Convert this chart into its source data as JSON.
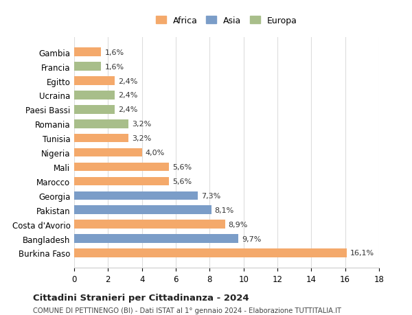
{
  "countries": [
    "Burkina Faso",
    "Bangladesh",
    "Costa d'Avorio",
    "Pakistan",
    "Georgia",
    "Marocco",
    "Mali",
    "Nigeria",
    "Tunisia",
    "Romania",
    "Paesi Bassi",
    "Ucraina",
    "Egitto",
    "Francia",
    "Gambia"
  ],
  "values": [
    16.1,
    9.7,
    8.9,
    8.1,
    7.3,
    5.6,
    5.6,
    4.0,
    3.2,
    3.2,
    2.4,
    2.4,
    2.4,
    1.6,
    1.6
  ],
  "labels": [
    "16,1%",
    "9,7%",
    "8,9%",
    "8,1%",
    "7,3%",
    "5,6%",
    "5,6%",
    "4,0%",
    "3,2%",
    "3,2%",
    "2,4%",
    "2,4%",
    "2,4%",
    "1,6%",
    "1,6%"
  ],
  "continents": [
    "Africa",
    "Asia",
    "Africa",
    "Asia",
    "Asia",
    "Africa",
    "Africa",
    "Africa",
    "Africa",
    "Europa",
    "Europa",
    "Europa",
    "Africa",
    "Europa",
    "Africa"
  ],
  "colors": {
    "Africa": "#F4A96B",
    "Asia": "#7B9DC8",
    "Europa": "#A8BE8A"
  },
  "legend_labels": [
    "Africa",
    "Asia",
    "Europa"
  ],
  "xlim": [
    0,
    18
  ],
  "xticks": [
    0,
    2,
    4,
    6,
    8,
    10,
    12,
    14,
    16,
    18
  ],
  "title": "Cittadini Stranieri per Cittadinanza - 2024",
  "subtitle": "COMUNE DI PETTINENGO (BI) - Dati ISTAT al 1° gennaio 2024 - Elaborazione TUTTITALIA.IT",
  "background_color": "#ffffff",
  "grid_color": "#dddddd"
}
